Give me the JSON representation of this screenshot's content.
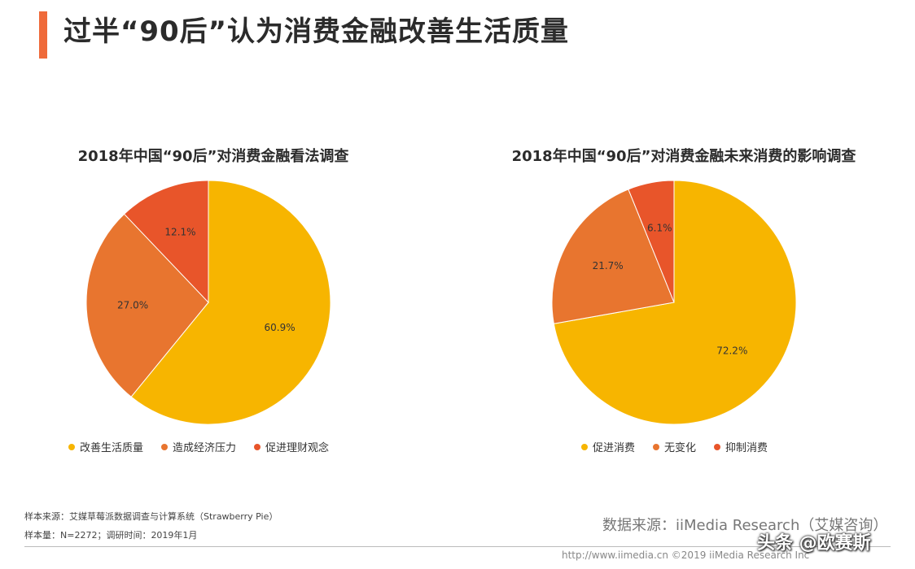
{
  "page_title": "过半“90后”认为消费金融改善生活质量",
  "colors": {
    "accent": "#ef6a3a",
    "yellow": "#f7b500",
    "orange": "#e8752f",
    "red": "#e8552a"
  },
  "chart_data": [
    {
      "type": "pie",
      "title": "2018年中国“90后”对消费金融看法调查",
      "slices": [
        {
          "label": "改善生活质量",
          "value": 60.9,
          "display": "60.9%",
          "color": "#f7b500"
        },
        {
          "label": "造成经济压力",
          "value": 27.0,
          "display": "27.0%",
          "color": "#e8752f"
        },
        {
          "label": "促进理财观念",
          "value": 12.1,
          "display": "12.1%",
          "color": "#e8552a"
        }
      ],
      "legend_position": "bottom"
    },
    {
      "type": "pie",
      "title": "2018年中国“90后”对消费金融未来消费的影响调查",
      "slices": [
        {
          "label": "促进消费",
          "value": 72.2,
          "display": "72.2%",
          "color": "#f7b500"
        },
        {
          "label": "无变化",
          "value": 21.7,
          "display": "21.7%",
          "color": "#e8752f"
        },
        {
          "label": "抑制消费",
          "value": 6.1,
          "display": "6.1%",
          "color": "#e8552a"
        }
      ],
      "legend_position": "bottom"
    }
  ],
  "notes": {
    "source": "样本来源：艾媒草莓派数据调查与计算系统（Strawberry Pie）",
    "sample": "样本量：N=2272；调研时间：2019年1月"
  },
  "source_right": "数据来源：iiMedia Research（艾媒咨询）",
  "footer": "http://www.iimedia.cn   ©2019  iiMedia Research Inc",
  "watermark": "头条 @欧赛斯"
}
